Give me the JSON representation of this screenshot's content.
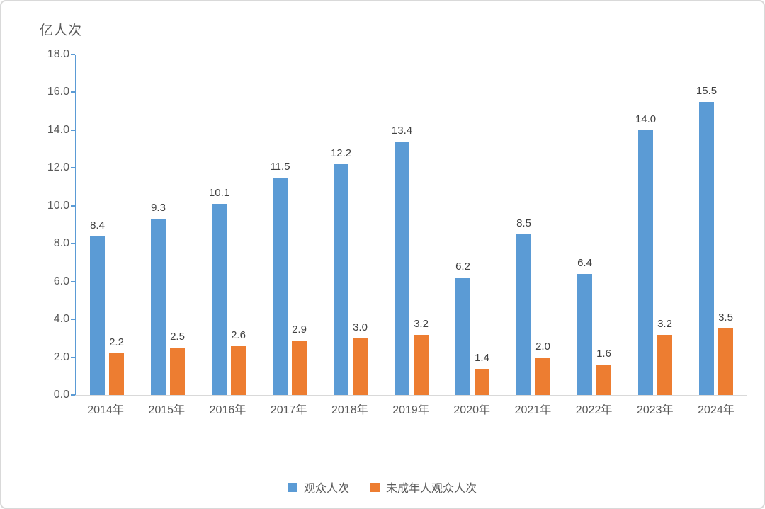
{
  "chart_data": {
    "type": "bar",
    "title": "",
    "unit_label": "亿人次",
    "categories": [
      "2014年",
      "2015年",
      "2016年",
      "2017年",
      "2018年",
      "2019年",
      "2020年",
      "2021年",
      "2022年",
      "2023年",
      "2024年"
    ],
    "series": [
      {
        "name": "观众人次",
        "color": "#5b9bd5",
        "values": [
          8.4,
          9.3,
          10.1,
          11.5,
          12.2,
          13.4,
          6.2,
          8.5,
          6.4,
          14.0,
          15.5
        ]
      },
      {
        "name": "未成年人观众人次",
        "color": "#ed7d31",
        "values": [
          2.2,
          2.5,
          2.6,
          2.9,
          3.0,
          3.2,
          1.4,
          2.0,
          1.6,
          3.2,
          3.5
        ]
      }
    ],
    "xlabel": "",
    "ylabel": "亿人次",
    "ylim": [
      0,
      18
    ],
    "ytick_step": 2,
    "ytick_labels": [
      "0.0",
      "2.0",
      "4.0",
      "6.0",
      "8.0",
      "10.0",
      "12.0",
      "14.0",
      "16.0",
      "18.0"
    ],
    "grid": false,
    "legend_position": "bottom",
    "data_labels_shown": true,
    "data_label_decimals": 1
  },
  "colors": {
    "bar_blue": "#5b9bd5",
    "bar_orange": "#ed7d31",
    "y_axis_line": "#5b9bd5",
    "x_axis_line": "#d9d9d9",
    "tick_label": "#595959",
    "data_label": "#404040",
    "frame_border": "#d9d9d9",
    "background": "#ffffff"
  }
}
